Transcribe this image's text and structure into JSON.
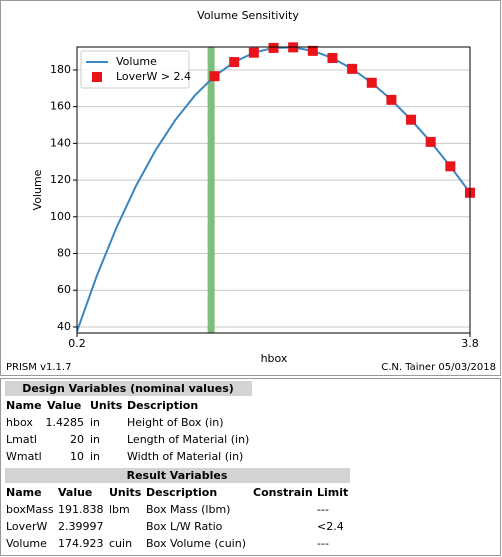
{
  "chart_data": {
    "type": "line",
    "title": "Volume Sensitivity",
    "xlabel": "hbox",
    "ylabel": "Volume",
    "xlim": [
      0.2,
      3.8
    ],
    "xticks": [
      0.2,
      3.8
    ],
    "ylim": [
      36.7,
      192.5
    ],
    "yticks": [
      40,
      60,
      80,
      100,
      120,
      140,
      160,
      180
    ],
    "grid": true,
    "legend": "upper left",
    "vline": {
      "value": 1.4285,
      "color": "#7dbf7d"
    },
    "series": [
      {
        "name": "Volume",
        "kind": "line",
        "color": "#3a86c0",
        "x": [
          0.2,
          0.38,
          0.56,
          0.74,
          0.92,
          1.1,
          1.28,
          1.46,
          1.64,
          1.82,
          2.0,
          2.18,
          2.36,
          2.54,
          2.72,
          2.9,
          3.08,
          3.26,
          3.44,
          3.62,
          3.8
        ],
        "values": [
          37.6,
          67.6,
          93.9,
          116.8,
          136.3,
          152.7,
          166.1,
          176.6,
          184.3,
          189.4,
          192.0,
          192.3,
          190.4,
          186.5,
          180.6,
          173.0,
          163.7,
          152.9,
          140.8,
          127.5,
          113.1
        ]
      },
      {
        "name": "LoverW > 2.4",
        "kind": "marker",
        "color": "#e8141a",
        "x": [
          1.46,
          1.64,
          1.82,
          2.0,
          2.18,
          2.36,
          2.54,
          2.72,
          2.9,
          3.08,
          3.26,
          3.44,
          3.62,
          3.8
        ],
        "values": [
          176.6,
          184.3,
          189.4,
          192.0,
          192.3,
          190.4,
          186.5,
          180.6,
          173.0,
          163.7,
          152.9,
          140.8,
          127.5,
          113.1
        ]
      }
    ]
  },
  "footer": {
    "left": "PRISM v1.1.7",
    "right": "C.N. Tainer 05/03/2018"
  },
  "design": {
    "title": "Design Variables (nominal values)",
    "columns": [
      "Name",
      "Value",
      "Units",
      "Description"
    ],
    "rows": [
      [
        "hbox",
        "1.4285",
        "in",
        "Height of Box (in)"
      ],
      [
        "Lmatl",
        "20",
        "in",
        "Length of Material (in)"
      ],
      [
        "Wmatl",
        "10",
        "in",
        "Width of Material (in)"
      ]
    ]
  },
  "result": {
    "title": "Result Variables",
    "columns": [
      "Name",
      "Value",
      "Units",
      "Description",
      "Constrain",
      "Limit"
    ],
    "rows": [
      [
        "boxMass",
        "191.838",
        "lbm",
        "Box Mass (lbm)",
        null,
        "---"
      ],
      [
        "LoverW",
        "2.39997",
        null,
        "Box L/W Ratio",
        null,
        "<2.4"
      ],
      [
        "Volume",
        "174.923",
        "cuin",
        "Box Volume (cuin)",
        null,
        "---"
      ]
    ]
  }
}
